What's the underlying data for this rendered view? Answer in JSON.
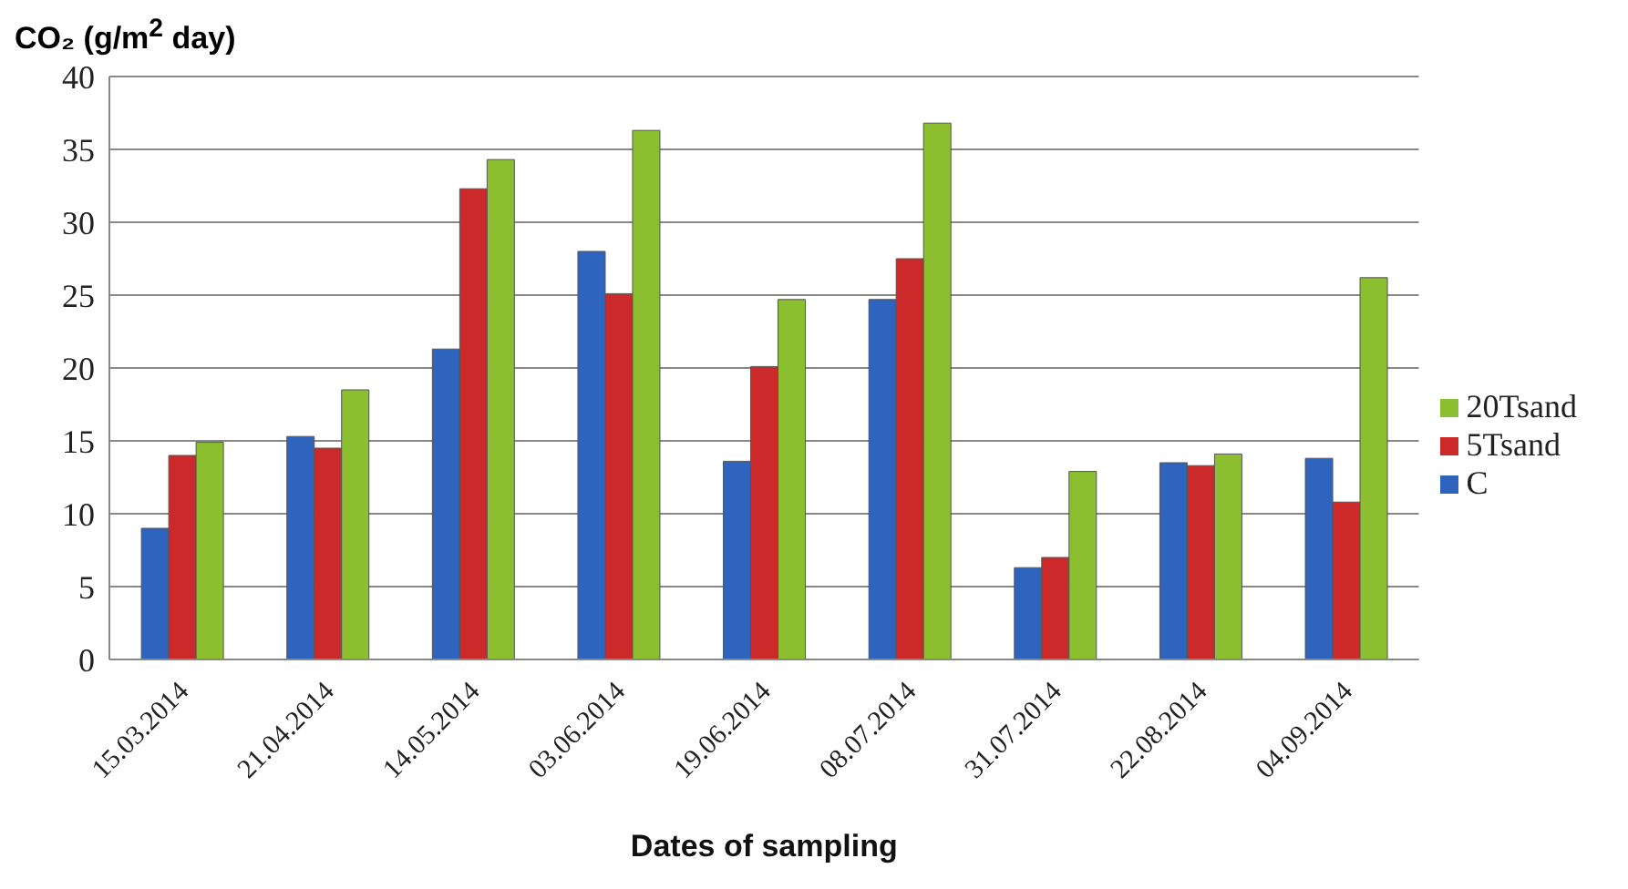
{
  "chart_data": {
    "type": "bar",
    "ylabel": "CO₂ (g/m$^{2}$ day)",
    "xlabel": "Dates of sampling",
    "categories": [
      "15.03.2014",
      "21.04.2014",
      "14.05.2014",
      "03.06.2014",
      "19.06.2014",
      "08.07.2014",
      "31.07.2014",
      "22.08.2014",
      "04.09.2014"
    ],
    "series": [
      {
        "name": "C",
        "color": "#2e64be",
        "values": [
          9,
          15.3,
          21.3,
          28,
          13.6,
          24.7,
          6.3,
          13.5,
          13.8
        ]
      },
      {
        "name": "5Tsand",
        "color": "#cc2a2a",
        "values": [
          14,
          14.5,
          32.3,
          25.1,
          20.1,
          27.5,
          7,
          13.3,
          10.8
        ]
      },
      {
        "name": "20Tsand",
        "color": "#8cbf2f",
        "values": [
          14.9,
          18.5,
          34.3,
          36.3,
          24.7,
          36.8,
          12.9,
          14.1,
          26.2
        ]
      }
    ],
    "ylim": [
      0,
      40
    ],
    "yticks": [
      0,
      5,
      10,
      15,
      20,
      25,
      30,
      35,
      40
    ],
    "grid": "y",
    "legend": "right"
  }
}
